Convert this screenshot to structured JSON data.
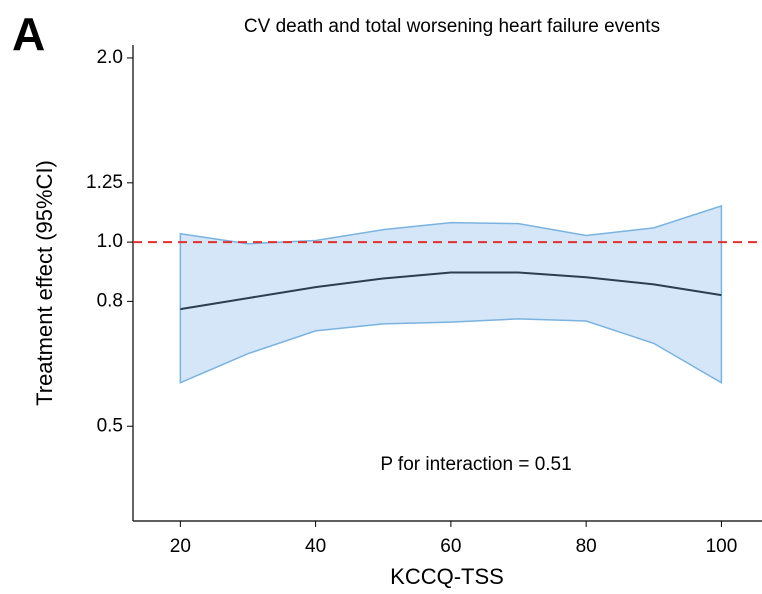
{
  "chart_data": {
    "type": "line",
    "panel_label": "A",
    "title": "CV death and total worsening heart failure events",
    "xlabel": "KCCQ-TSS",
    "ylabel": "Treatment effect (95%CI)",
    "annotation": "P for interaction = 0.51",
    "x": [
      20,
      30,
      40,
      50,
      60,
      70,
      80,
      90,
      100
    ],
    "values": [
      0.777,
      0.81,
      0.844,
      0.872,
      0.892,
      0.892,
      0.876,
      0.853,
      0.819
    ],
    "ci_upper": [
      1.032,
      0.994,
      1.006,
      1.048,
      1.076,
      1.072,
      1.025,
      1.055,
      1.146
    ],
    "ci_lower": [
      0.589,
      0.657,
      0.716,
      0.735,
      0.74,
      0.749,
      0.743,
      0.683,
      0.589
    ],
    "color": "#2c3e50",
    "band_color": "#d4e6f7",
    "band_edge_color": "#7ab3e0",
    "reference_line": 1,
    "reference_color": "#e03030",
    "xlim": [
      13,
      106
    ],
    "xticks": [
      20,
      40,
      60,
      80,
      100
    ],
    "ylim": [
      0.35,
      2.1
    ],
    "ylog": true,
    "yticks": [
      0.5,
      0.8,
      {
        "value": 1,
        "label": "1.0"
      },
      1.25,
      {
        "value": 2,
        "label": "2.0"
      }
    ]
  }
}
